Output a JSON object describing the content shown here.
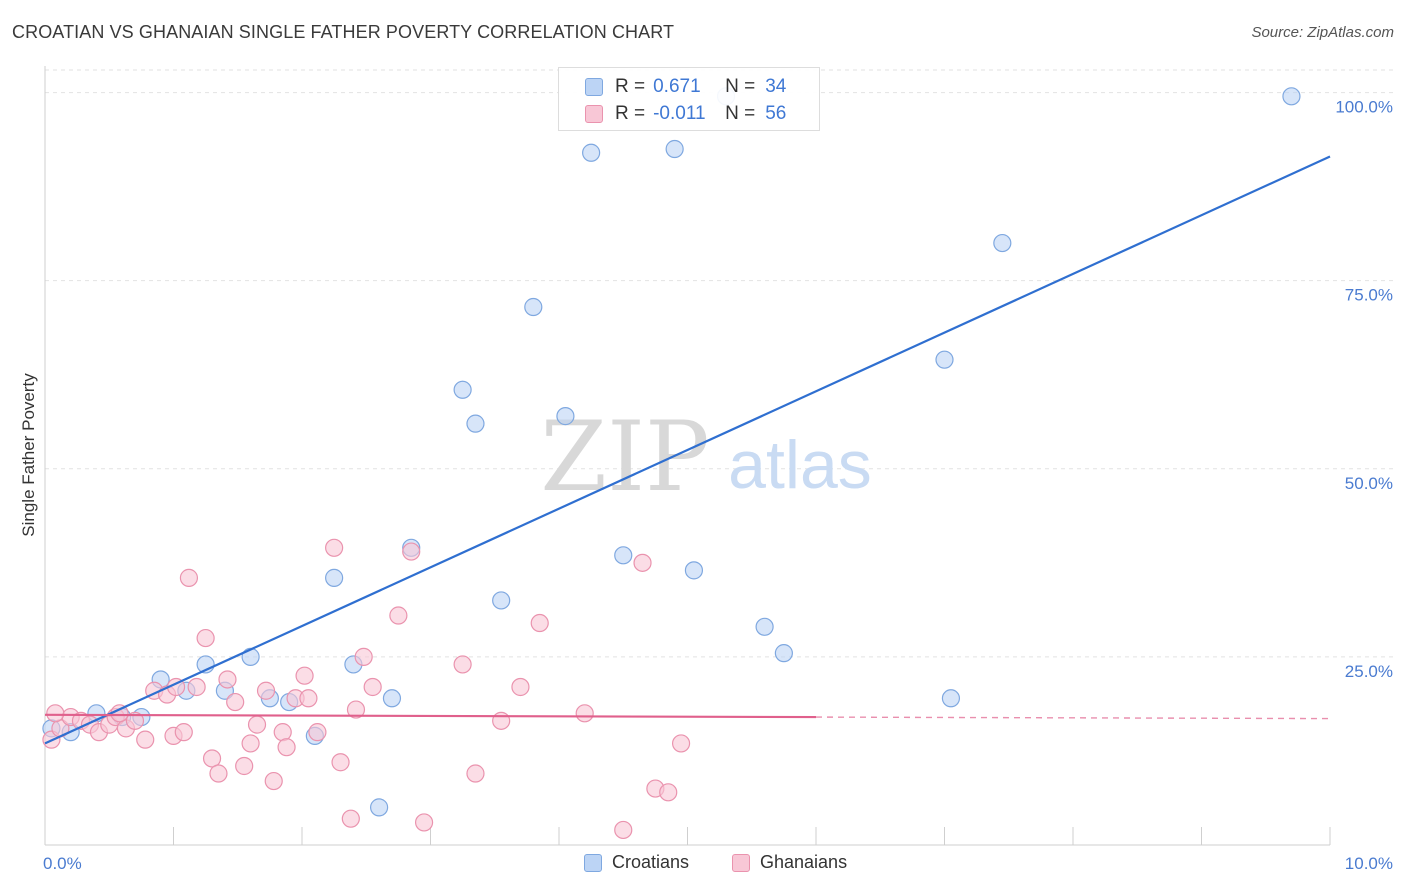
{
  "title": "CROATIAN VS GHANAIAN SINGLE FATHER POVERTY CORRELATION CHART",
  "source": "Source: ZipAtlas.com",
  "watermark": {
    "zip": "ZIP",
    "atlas": "atlas"
  },
  "colors": {
    "croatians_fill": "#bcd4f5",
    "croatians_stroke": "#7fa8e0",
    "croatians_line": "#2f6fd0",
    "ghanaians_fill": "#f8c7d6",
    "ghanaians_stroke": "#ea93ae",
    "ghanaians_line": "#e0608c",
    "tick_label": "#4a7bd0"
  },
  "legend": {
    "r_label": "R =",
    "n_label": "N =",
    "rows": [
      {
        "r": "0.671",
        "n": "34"
      },
      {
        "r": "-0.011",
        "n": "56"
      }
    ]
  },
  "chart_data": {
    "type": "scatter",
    "title": "CROATIAN VS GHANAIAN SINGLE FATHER POVERTY CORRELATION CHART",
    "xlabel": "",
    "ylabel": "Single Father Poverty",
    "xlim": [
      0,
      10
    ],
    "ylim": [
      0,
      103
    ],
    "x_tick_labels": [
      "0.0%",
      "10.0%"
    ],
    "y_ticks": [
      25,
      50,
      75,
      100
    ],
    "y_tick_labels": [
      "25.0%",
      "50.0%",
      "75.0%",
      "100.0%"
    ],
    "grid": true,
    "legend_position": "top-center",
    "series": [
      {
        "name": "Croatians",
        "r": 0.671,
        "n": 34,
        "trend": {
          "x": [
            0.0,
            10.0
          ],
          "y": [
            13.5,
            91.5
          ]
        },
        "points": [
          [
            0.05,
            15.5
          ],
          [
            0.2,
            15.0
          ],
          [
            0.4,
            17.5
          ],
          [
            0.6,
            17.0
          ],
          [
            0.75,
            17.0
          ],
          [
            0.9,
            22.0
          ],
          [
            1.1,
            20.5
          ],
          [
            1.25,
            24.0
          ],
          [
            1.4,
            20.5
          ],
          [
            1.6,
            25.0
          ],
          [
            1.75,
            19.5
          ],
          [
            1.9,
            19.0
          ],
          [
            2.25,
            35.5
          ],
          [
            2.1,
            14.5
          ],
          [
            2.4,
            24.0
          ],
          [
            2.6,
            5.0
          ],
          [
            2.7,
            19.5
          ],
          [
            2.85,
            39.5
          ],
          [
            3.25,
            60.5
          ],
          [
            3.35,
            56.0
          ],
          [
            3.55,
            32.5
          ],
          [
            3.8,
            71.5
          ],
          [
            4.05,
            57.0
          ],
          [
            4.25,
            92.0
          ],
          [
            4.5,
            38.5
          ],
          [
            4.9,
            92.5
          ],
          [
            5.05,
            36.5
          ],
          [
            5.6,
            29.0
          ],
          [
            5.75,
            25.5
          ],
          [
            7.0,
            64.5
          ],
          [
            7.05,
            19.5
          ],
          [
            7.45,
            80.0
          ],
          [
            9.7,
            99.5
          ],
          [
            5.3,
            99.5
          ]
        ]
      },
      {
        "name": "Ghanaians",
        "r": -0.011,
        "n": 56,
        "trend": {
          "x": [
            0.0,
            10.0
          ],
          "y": [
            17.3,
            16.8
          ]
        },
        "trend_solid_to_x": 6.0,
        "points": [
          [
            0.05,
            14.0
          ],
          [
            0.12,
            15.5
          ],
          [
            0.2,
            17.0
          ],
          [
            0.28,
            16.5
          ],
          [
            0.35,
            16.0
          ],
          [
            0.42,
            15.0
          ],
          [
            0.5,
            16.0
          ],
          [
            0.55,
            17.0
          ],
          [
            0.63,
            15.5
          ],
          [
            0.7,
            16.5
          ],
          [
            0.78,
            14.0
          ],
          [
            0.85,
            20.5
          ],
          [
            0.95,
            20.0
          ],
          [
            1.0,
            14.5
          ],
          [
            1.08,
            15.0
          ],
          [
            1.12,
            35.5
          ],
          [
            1.18,
            21.0
          ],
          [
            1.25,
            27.5
          ],
          [
            1.3,
            11.5
          ],
          [
            1.35,
            9.5
          ],
          [
            1.42,
            22.0
          ],
          [
            1.48,
            19.0
          ],
          [
            1.55,
            10.5
          ],
          [
            1.6,
            13.5
          ],
          [
            1.65,
            16.0
          ],
          [
            1.72,
            20.5
          ],
          [
            1.78,
            8.5
          ],
          [
            1.85,
            15.0
          ],
          [
            1.88,
            13.0
          ],
          [
            1.95,
            19.5
          ],
          [
            2.02,
            22.5
          ],
          [
            2.05,
            19.5
          ],
          [
            2.12,
            15.0
          ],
          [
            2.25,
            39.5
          ],
          [
            2.3,
            11.0
          ],
          [
            2.38,
            3.5
          ],
          [
            2.42,
            18.0
          ],
          [
            2.48,
            25.0
          ],
          [
            2.55,
            21.0
          ],
          [
            2.75,
            30.5
          ],
          [
            2.85,
            39.0
          ],
          [
            2.95,
            3.0
          ],
          [
            3.25,
            24.0
          ],
          [
            3.35,
            9.5
          ],
          [
            3.55,
            16.5
          ],
          [
            3.7,
            21.0
          ],
          [
            3.85,
            29.5
          ],
          [
            4.2,
            17.5
          ],
          [
            4.5,
            2.0
          ],
          [
            4.65,
            37.5
          ],
          [
            4.75,
            7.5
          ],
          [
            4.85,
            7.0
          ],
          [
            4.95,
            13.5
          ],
          [
            0.58,
            17.5
          ],
          [
            0.08,
            17.5
          ],
          [
            1.02,
            21.0
          ]
        ]
      }
    ]
  },
  "bottom_legend": [
    {
      "label": "Croatians"
    },
    {
      "label": "Ghanaians"
    }
  ]
}
